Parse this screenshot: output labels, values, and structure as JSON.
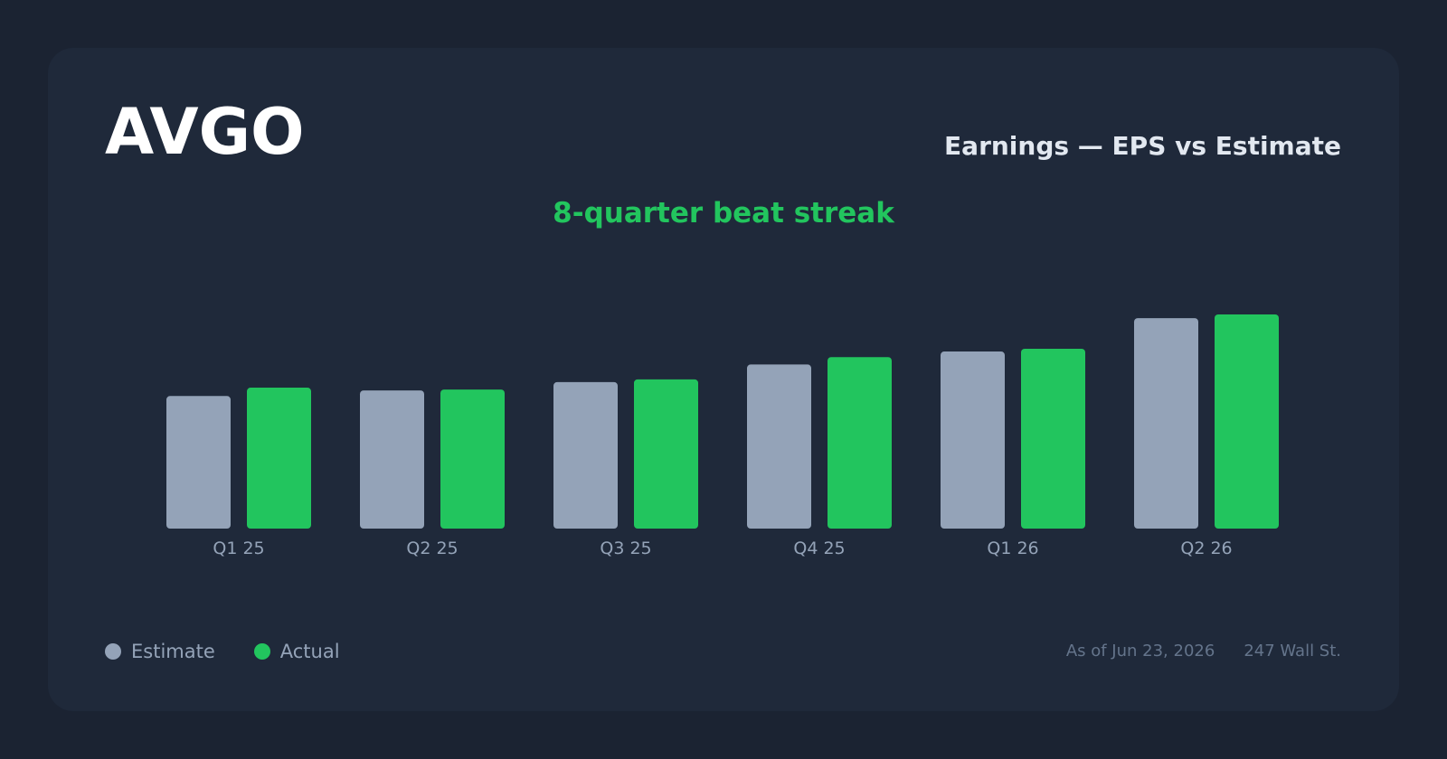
{
  "header": {
    "ticker": "AVGO",
    "title": "Earnings — EPS vs Estimate",
    "subtitle": "8-quarter beat streak"
  },
  "legend": {
    "estimate_label": "Estimate",
    "actual_label": "Actual"
  },
  "footer": {
    "as_of": "As of Jun 23, 2026",
    "source": "247 Wall St."
  },
  "colors": {
    "background": "#1b2332",
    "card": "#1f293a",
    "estimate": "#94a3b8",
    "actual": "#22c55e",
    "accent": "#22c55e"
  },
  "chart_data": {
    "type": "bar",
    "categories": [
      "Q1 25",
      "Q2 25",
      "Q3 25",
      "Q4 25",
      "Q1 26",
      "Q2 26"
    ],
    "series": [
      {
        "name": "Estimate",
        "values": [
          1.43,
          1.49,
          1.58,
          1.77,
          1.91,
          2.27
        ]
      },
      {
        "name": "Actual",
        "values": [
          1.52,
          1.5,
          1.61,
          1.85,
          1.94,
          2.31
        ]
      }
    ],
    "title": "Earnings — EPS vs Estimate",
    "subtitle": "8-quarter beat streak",
    "xlabel": "",
    "ylabel": "",
    "ylim": [
      0,
      2.31
    ],
    "grid": false,
    "legend": "bottom-left"
  }
}
